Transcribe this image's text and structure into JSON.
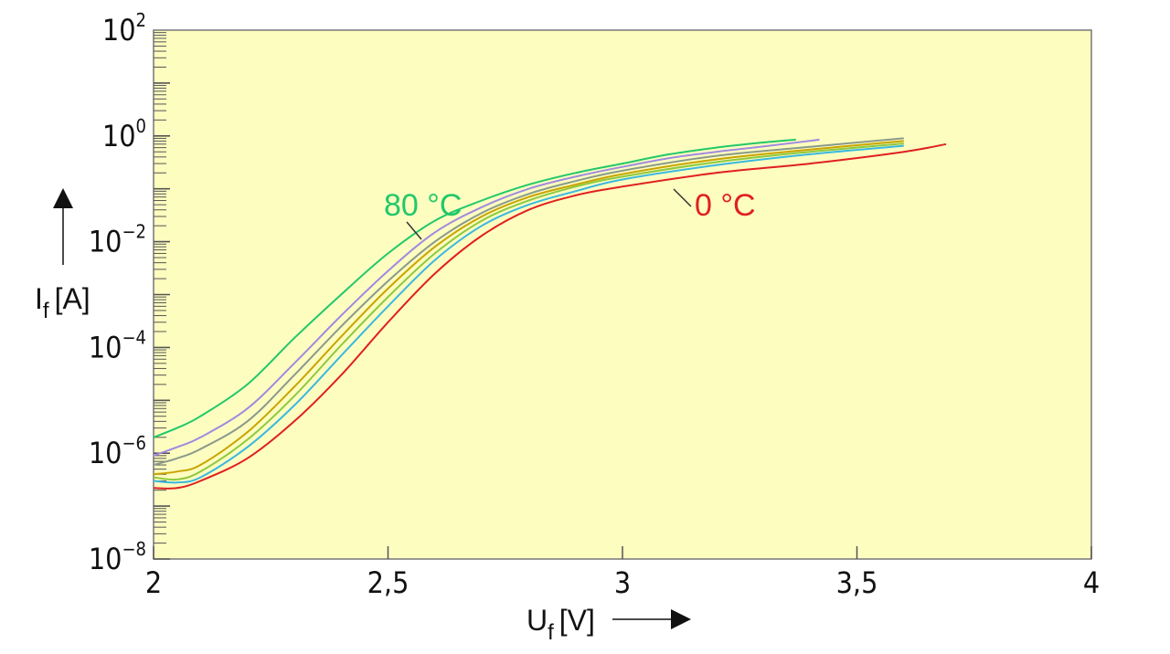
{
  "chart_data": {
    "type": "line",
    "xlabel": {
      "main": "U",
      "sub": "f",
      "unit": "[V]"
    },
    "ylabel": {
      "main": "I",
      "sub": "f",
      "unit": "[A]"
    },
    "xlim": [
      2,
      4
    ],
    "ylim": [
      1e-08,
      100
    ],
    "yscale": "log",
    "x_ticks": [
      "2",
      "2,5",
      "3",
      "3,5",
      "4"
    ],
    "y_ticks": [
      {
        "base": "10",
        "exp": "2"
      },
      {
        "base": "10",
        "exp": "0"
      },
      {
        "base": "10",
        "exp": "−2"
      },
      {
        "base": "10",
        "exp": "−4"
      },
      {
        "base": "10",
        "exp": "−6"
      },
      {
        "base": "10",
        "exp": "−8"
      }
    ],
    "grid": false,
    "background": "#fdfdc0",
    "annotations": [
      {
        "text": "80 °C",
        "color": "#22c86a"
      },
      {
        "text": "0 °C",
        "color": "#e02020"
      }
    ],
    "series": [
      {
        "color": "#22c86a",
        "x": [
          2.0,
          2.05,
          2.1,
          2.2,
          2.3,
          2.4,
          2.5,
          2.6,
          2.7,
          2.8,
          2.9,
          3.0,
          3.1,
          3.2,
          3.3,
          3.37
        ],
        "y": [
          2e-06,
          3e-06,
          5e-06,
          2e-05,
          0.00015,
          0.001,
          0.006,
          0.025,
          0.06,
          0.12,
          0.2,
          0.3,
          0.45,
          0.6,
          0.75,
          0.85
        ]
      },
      {
        "color": "#a08ae0",
        "x": [
          2.0,
          2.05,
          2.1,
          2.2,
          2.3,
          2.4,
          2.5,
          2.6,
          2.7,
          2.8,
          2.9,
          3.0,
          3.1,
          3.2,
          3.3,
          3.42
        ],
        "y": [
          9e-07,
          1.3e-06,
          2e-06,
          7e-06,
          5e-05,
          0.0004,
          0.0028,
          0.015,
          0.045,
          0.1,
          0.17,
          0.26,
          0.38,
          0.5,
          0.63,
          0.85
        ]
      },
      {
        "color": "#8a9a8a",
        "x": [
          2.0,
          2.05,
          2.1,
          2.2,
          2.3,
          2.4,
          2.5,
          2.6,
          2.7,
          2.8,
          2.9,
          3.0,
          3.2,
          3.4,
          3.6
        ],
        "y": [
          6e-07,
          8e-07,
          1.2e-06,
          4e-06,
          3e-05,
          0.00025,
          0.0018,
          0.01,
          0.035,
          0.08,
          0.14,
          0.22,
          0.42,
          0.62,
          0.9
        ]
      },
      {
        "color": "#c9a400",
        "x": [
          2.0,
          2.05,
          2.1,
          2.2,
          2.3,
          2.4,
          2.5,
          2.6,
          2.7,
          2.8,
          2.9,
          3.0,
          3.2,
          3.4,
          3.6
        ],
        "y": [
          4e-07,
          4.5e-07,
          6e-07,
          2.5e-06,
          1.8e-05,
          0.00016,
          0.0013,
          0.008,
          0.03,
          0.07,
          0.12,
          0.19,
          0.36,
          0.55,
          0.8
        ]
      },
      {
        "color": "#8ec840",
        "x": [
          2.0,
          2.05,
          2.1,
          2.2,
          2.3,
          2.4,
          2.5,
          2.6,
          2.7,
          2.8,
          2.9,
          3.0,
          3.2,
          3.4,
          3.6
        ],
        "y": [
          3.5e-07,
          3.2e-07,
          4.5e-07,
          1.8e-06,
          1.2e-05,
          0.00011,
          0.0009,
          0.006,
          0.025,
          0.06,
          0.11,
          0.17,
          0.32,
          0.5,
          0.72
        ]
      },
      {
        "color": "#3ab8e0",
        "x": [
          2.0,
          2.05,
          2.1,
          2.2,
          2.3,
          2.4,
          2.5,
          2.6,
          2.7,
          2.8,
          2.9,
          3.0,
          3.2,
          3.4,
          3.6
        ],
        "y": [
          3e-07,
          2.8e-07,
          3.5e-07,
          1.3e-06,
          8e-06,
          7e-05,
          0.0006,
          0.0045,
          0.02,
          0.05,
          0.09,
          0.15,
          0.28,
          0.45,
          0.65
        ]
      },
      {
        "color": "#e02020",
        "x": [
          2.0,
          2.05,
          2.1,
          2.2,
          2.3,
          2.4,
          2.5,
          2.6,
          2.7,
          2.8,
          2.9,
          3.0,
          3.2,
          3.4,
          3.6,
          3.69
        ],
        "y": [
          2.2e-07,
          2.2e-07,
          3e-07,
          8e-07,
          4e-06,
          3e-05,
          0.0003,
          0.0025,
          0.013,
          0.04,
          0.075,
          0.11,
          0.2,
          0.3,
          0.5,
          0.7
        ]
      }
    ]
  }
}
